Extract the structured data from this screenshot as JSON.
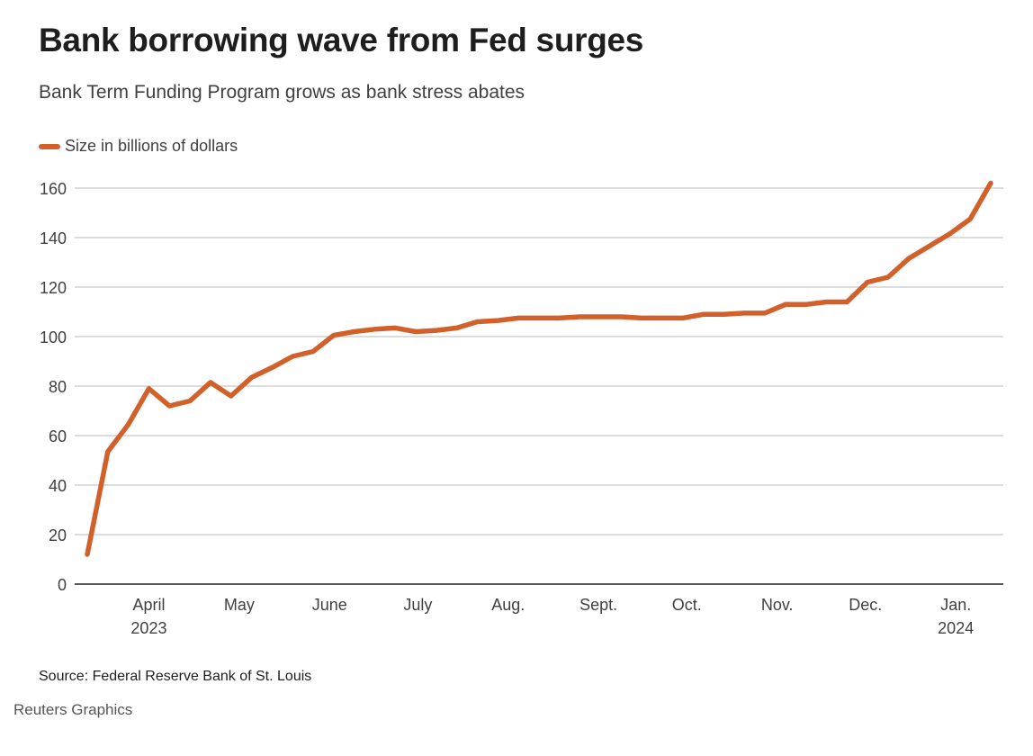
{
  "header": {
    "title": "Bank borrowing wave from Fed surges",
    "subtitle": "Bank Term Funding Program grows as bank stress abates"
  },
  "footer": {
    "source": "Source: Federal Reserve Bank of St. Louis",
    "credit": "Reuters Graphics"
  },
  "colors": {
    "line": "#d2602a",
    "grid": "#c8c8c8",
    "axis": "#222222",
    "tick_text": "#404040"
  },
  "chart_data": {
    "type": "line",
    "title": "Bank borrowing wave from Fed surges",
    "subtitle": "Bank Term Funding Program grows as bank stress abates",
    "xlabel": "",
    "ylabel": "",
    "ylim": [
      0,
      160
    ],
    "yticks": [
      0,
      20,
      40,
      60,
      80,
      100,
      120,
      140,
      160
    ],
    "grid": true,
    "legend": {
      "placement": "top-left",
      "entries": [
        "Size in billions of dollars"
      ]
    },
    "x_tick_labels": [
      {
        "label": "April",
        "sub": "2023",
        "index": 3
      },
      {
        "label": "May",
        "sub": "",
        "index": 7.4
      },
      {
        "label": "June",
        "sub": "",
        "index": 11.8
      },
      {
        "label": "July",
        "sub": "",
        "index": 16.1
      },
      {
        "label": "Aug.",
        "sub": "",
        "index": 20.5
      },
      {
        "label": "Sept.",
        "sub": "",
        "index": 24.9
      },
      {
        "label": "Oct.",
        "sub": "",
        "index": 29.2
      },
      {
        "label": "Nov.",
        "sub": "",
        "index": 33.6
      },
      {
        "label": "Dec.",
        "sub": "",
        "index": 37.9
      },
      {
        "label": "Jan.",
        "sub": "2024",
        "index": 42.3
      }
    ],
    "series": [
      {
        "name": "Size in billions of dollars",
        "frequency": "weekly",
        "values": [
          12,
          53.5,
          64.5,
          79,
          72,
          74,
          81.5,
          76,
          83.5,
          87.5,
          92,
          94,
          100.5,
          102,
          103,
          103.5,
          102,
          102.5,
          103.5,
          106,
          106.5,
          107.5,
          107.5,
          107.5,
          108,
          108,
          108,
          107.5,
          107.5,
          107.5,
          109,
          109,
          109.5,
          109.5,
          113,
          113,
          114,
          114,
          122,
          124,
          131.5,
          136.5,
          141.5,
          147.5,
          162
        ]
      }
    ]
  }
}
